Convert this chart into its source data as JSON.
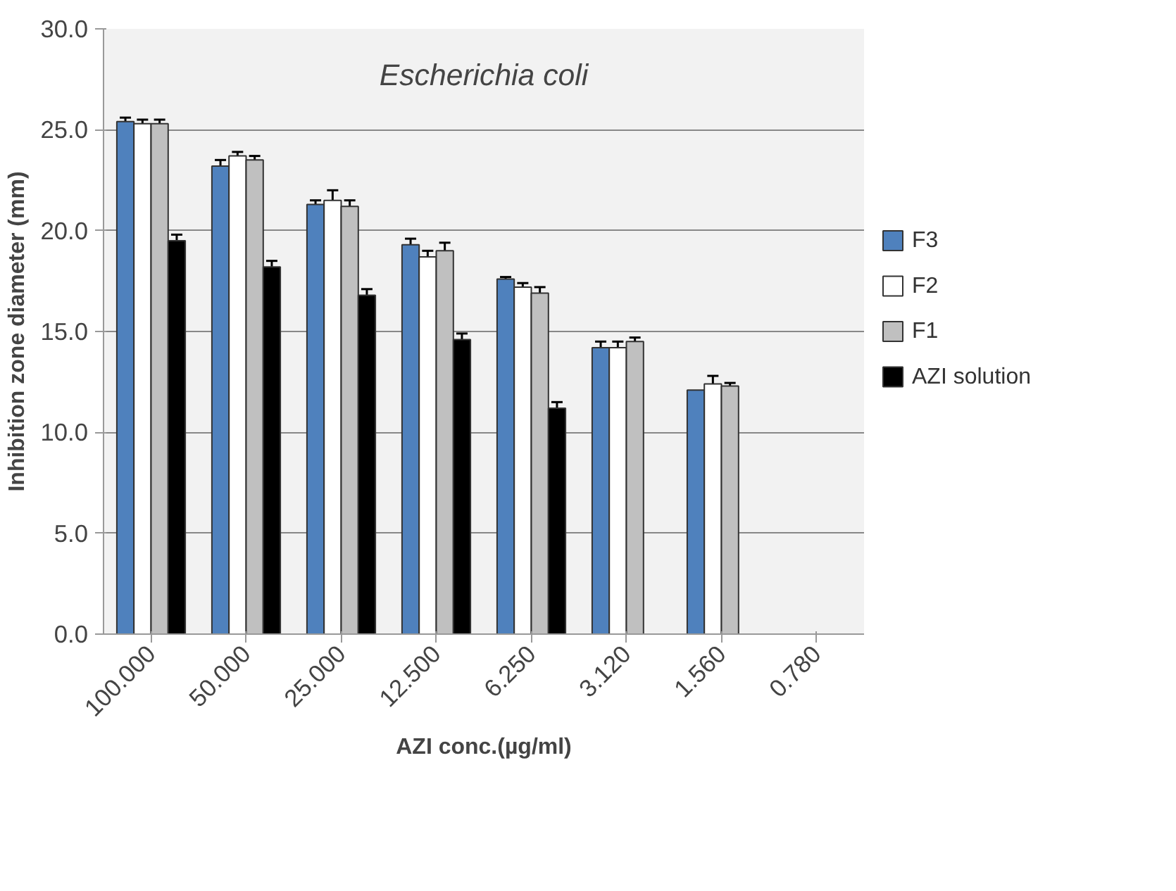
{
  "chart_data": {
    "type": "bar",
    "title": "Escherichia coli",
    "xlabel": "AZI conc.(µg/ml)",
    "ylabel": "Inhibition zone diameter (mm)",
    "categories": [
      "100.000",
      "50.000",
      "25.000",
      "12.500",
      "6.250",
      "3.120",
      "1.560",
      "0.780"
    ],
    "series": [
      {
        "name": "F3",
        "color": "#4f81bd",
        "values": [
          25.4,
          23.2,
          21.3,
          19.3,
          17.6,
          14.2,
          12.1,
          null
        ],
        "errors": [
          0.2,
          0.3,
          0.2,
          0.3,
          0.1,
          0.3,
          null,
          null
        ]
      },
      {
        "name": "F2",
        "color": "#ffffff",
        "values": [
          25.3,
          23.7,
          21.5,
          18.7,
          17.2,
          14.2,
          12.4,
          null
        ],
        "errors": [
          0.2,
          0.2,
          0.5,
          0.3,
          0.2,
          0.3,
          0.4,
          null
        ]
      },
      {
        "name": "F1",
        "color": "#c0c0c0",
        "values": [
          25.3,
          23.5,
          21.2,
          19.0,
          16.9,
          14.5,
          12.3,
          null
        ],
        "errors": [
          0.2,
          0.2,
          0.3,
          0.4,
          0.3,
          0.2,
          0.15,
          null
        ]
      },
      {
        "name": "AZI solution",
        "color": "#000000",
        "values": [
          19.5,
          18.2,
          16.8,
          14.6,
          11.2,
          null,
          null,
          null
        ],
        "errors": [
          0.3,
          0.3,
          0.3,
          0.3,
          0.3,
          null,
          null,
          null
        ]
      }
    ],
    "ylim": [
      0,
      30
    ],
    "yticks": [
      {
        "value": 0,
        "label": "0.0"
      },
      {
        "value": 5,
        "label": "5.0"
      },
      {
        "value": 10,
        "label": "10.0"
      },
      {
        "value": 15,
        "label": "15.0"
      },
      {
        "value": 20,
        "label": "20.0"
      },
      {
        "value": 25,
        "label": "25.0"
      },
      {
        "value": 30,
        "label": "30.0"
      }
    ],
    "grid": "y",
    "legend": "right"
  }
}
